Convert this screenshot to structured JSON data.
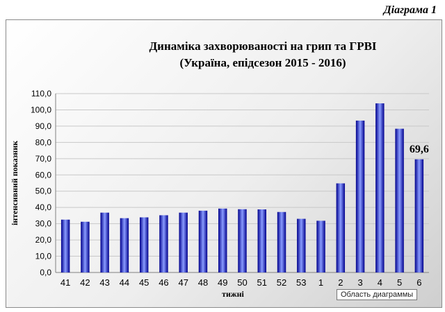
{
  "caption": "Діаграма 1",
  "tooltip": "Область диаграммы",
  "chart_data": {
    "type": "bar",
    "title": [
      "Динаміка захворюваності на грип та ГРВІ",
      "(Україна, епідсезон 2015 - 2016)"
    ],
    "xlabel": "тижні",
    "ylabel": "інтенсивний показник",
    "ylim": [
      0,
      110
    ],
    "y_ticks": [
      "0,0",
      "10,0",
      "20,0",
      "30,0",
      "40,0",
      "50,0",
      "60,0",
      "70,0",
      "80,0",
      "90,0",
      "100,0",
      "110,0"
    ],
    "categories": [
      "41",
      "42",
      "43",
      "44",
      "45",
      "46",
      "47",
      "48",
      "49",
      "50",
      "51",
      "52",
      "53",
      "1",
      "2",
      "3",
      "4",
      "5",
      "6"
    ],
    "values": [
      32.5,
      31.2,
      36.8,
      33.4,
      33.9,
      35.2,
      36.8,
      38.0,
      39.3,
      38.9,
      38.8,
      37.2,
      33.0,
      31.8,
      54.8,
      93.4,
      104.0,
      88.4,
      69.6
    ],
    "data_labels": [
      {
        "index": 18,
        "text": "69,6"
      }
    ],
    "grid": true,
    "colors": {
      "bar_edge": "#00008c",
      "bar_center": "#8a9cff",
      "grid": "#c8c8c8"
    }
  }
}
